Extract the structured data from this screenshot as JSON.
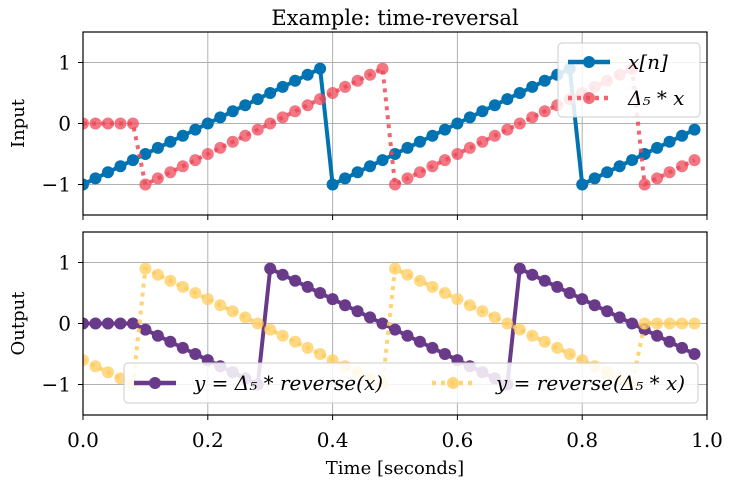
{
  "figure": {
    "title": "Example: time-reversal",
    "xlabel": "Time [seconds]"
  },
  "colors": {
    "x": "#0173b2",
    "delay_x": "#ee4a5a",
    "y_delay_rev": "#6a3a8a",
    "y_rev_delay": "#ffcc5c",
    "grid": "#b0b0b0"
  },
  "chart_data": [
    {
      "type": "line",
      "ylabel": "Input",
      "xlim": [
        0.0,
        1.0
      ],
      "ylim": [
        -1.5,
        1.5
      ],
      "grid": true,
      "legend_position": "top-right",
      "x_ticks": [],
      "y_ticks": [
        "1",
        "0",
        "−1"
      ],
      "y_tick_values": [
        1,
        0,
        -1
      ],
      "x": [
        0,
        0.02,
        0.04,
        0.06,
        0.08,
        0.1,
        0.12,
        0.14,
        0.16,
        0.18,
        0.2,
        0.22,
        0.24,
        0.26,
        0.28,
        0.3,
        0.32,
        0.34,
        0.36,
        0.38,
        0.4,
        0.42,
        0.44,
        0.46,
        0.48,
        0.5,
        0.52,
        0.54,
        0.56,
        0.58,
        0.6,
        0.62,
        0.64,
        0.66,
        0.68,
        0.7,
        0.72,
        0.74,
        0.76,
        0.78,
        0.8,
        0.82,
        0.84,
        0.86,
        0.88,
        0.9,
        0.92,
        0.94,
        0.96,
        0.98
      ],
      "series": [
        {
          "name": "x[n]",
          "style": "solid",
          "values": [
            -1.0,
            -0.9,
            -0.8,
            -0.7,
            -0.6,
            -0.5,
            -0.4,
            -0.3,
            -0.2,
            -0.1,
            0.0,
            0.1,
            0.2,
            0.3,
            0.4,
            0.5,
            0.6,
            0.7,
            0.8,
            0.9,
            -1.0,
            -0.9,
            -0.8,
            -0.7,
            -0.6,
            -0.5,
            -0.4,
            -0.3,
            -0.2,
            -0.1,
            0.0,
            0.1,
            0.2,
            0.3,
            0.4,
            0.5,
            0.6,
            0.7,
            0.8,
            0.9,
            -1.0,
            -0.9,
            -0.8,
            -0.7,
            -0.6,
            -0.5,
            -0.4,
            -0.3,
            -0.2,
            -0.1
          ]
        },
        {
          "name": "Δ₅ * x",
          "style": "dotted",
          "values": [
            0,
            0,
            0,
            0,
            0,
            -1.0,
            -0.9,
            -0.8,
            -0.7,
            -0.6,
            -0.5,
            -0.4,
            -0.3,
            -0.2,
            -0.1,
            0.0,
            0.1,
            0.2,
            0.3,
            0.4,
            0.5,
            0.6,
            0.7,
            0.8,
            0.9,
            -1.0,
            -0.9,
            -0.8,
            -0.7,
            -0.6,
            -0.5,
            -0.4,
            -0.3,
            -0.2,
            -0.1,
            0.0,
            0.1,
            0.2,
            0.3,
            0.4,
            0.5,
            0.6,
            0.7,
            0.8,
            0.9,
            -1.0,
            -0.9,
            -0.8,
            -0.7,
            -0.6
          ]
        }
      ]
    },
    {
      "type": "line",
      "ylabel": "Output",
      "xlim": [
        0.0,
        1.0
      ],
      "ylim": [
        -1.5,
        1.5
      ],
      "grid": true,
      "legend_position": "bottom",
      "x_ticks": [
        "0.0",
        "0.2",
        "0.4",
        "0.6",
        "0.8",
        "1.0"
      ],
      "x_tick_values": [
        0.0,
        0.2,
        0.4,
        0.6,
        0.8,
        1.0
      ],
      "y_ticks": [
        "1",
        "0",
        "−1"
      ],
      "y_tick_values": [
        1,
        0,
        -1
      ],
      "x": [
        0,
        0.02,
        0.04,
        0.06,
        0.08,
        0.1,
        0.12,
        0.14,
        0.16,
        0.18,
        0.2,
        0.22,
        0.24,
        0.26,
        0.28,
        0.3,
        0.32,
        0.34,
        0.36,
        0.38,
        0.4,
        0.42,
        0.44,
        0.46,
        0.48,
        0.5,
        0.52,
        0.54,
        0.56,
        0.58,
        0.6,
        0.62,
        0.64,
        0.66,
        0.68,
        0.7,
        0.72,
        0.74,
        0.76,
        0.78,
        0.8,
        0.82,
        0.84,
        0.86,
        0.88,
        0.9,
        0.92,
        0.94,
        0.96,
        0.98
      ],
      "series": [
        {
          "name": "y = Δ₅ * reverse(x)",
          "style": "solid",
          "values": [
            0,
            0,
            0,
            0,
            0,
            -0.1,
            -0.2,
            -0.3,
            -0.4,
            -0.5,
            -0.6,
            -0.7,
            -0.8,
            -0.9,
            -1.0,
            0.9,
            0.8,
            0.7,
            0.6,
            0.5,
            0.4,
            0.3,
            0.2,
            0.1,
            0.0,
            -0.1,
            -0.2,
            -0.3,
            -0.4,
            -0.5,
            -0.6,
            -0.7,
            -0.8,
            -0.9,
            -1.0,
            0.9,
            0.8,
            0.7,
            0.6,
            0.5,
            0.4,
            0.3,
            0.2,
            0.1,
            0.0,
            -0.1,
            -0.2,
            -0.3,
            -0.4,
            -0.5
          ]
        },
        {
          "name": "y = reverse(Δ₅ * x)",
          "style": "dotted",
          "values": [
            -0.6,
            -0.7,
            -0.8,
            -0.9,
            -1.0,
            0.9,
            0.8,
            0.7,
            0.6,
            0.5,
            0.4,
            0.3,
            0.2,
            0.1,
            0.0,
            -0.1,
            -0.2,
            -0.3,
            -0.4,
            -0.5,
            -0.6,
            -0.7,
            -0.8,
            -0.9,
            -1.0,
            0.9,
            0.8,
            0.7,
            0.6,
            0.5,
            0.4,
            0.3,
            0.2,
            0.1,
            0.0,
            -0.1,
            -0.2,
            -0.3,
            -0.4,
            -0.5,
            -0.6,
            -0.7,
            -0.8,
            -0.9,
            -1.0,
            0,
            0,
            0,
            0,
            0
          ]
        }
      ]
    }
  ]
}
